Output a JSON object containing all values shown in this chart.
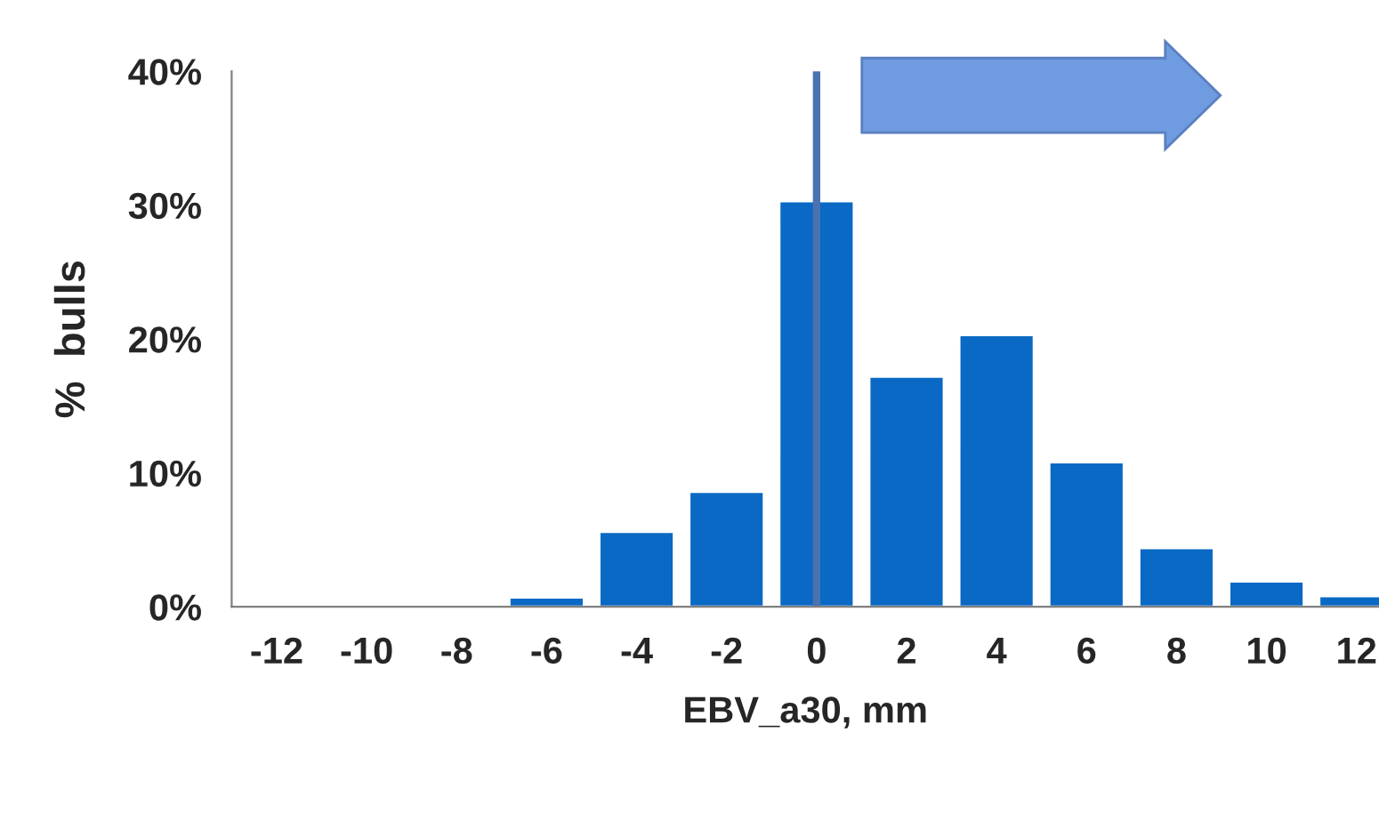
{
  "chart_data": {
    "type": "bar",
    "xlabel": "EBV_a30, mm",
    "ylabel": "%  bulls",
    "categories": [
      "-12",
      "-10",
      "-8",
      "-6",
      "-4",
      "-2",
      "0",
      "2",
      "4",
      "6",
      "8",
      "10",
      "12"
    ],
    "values": [
      null,
      null,
      null,
      0.7,
      5.6,
      8.6,
      30.3,
      17.2,
      20.3,
      10.8,
      4.4,
      1.9,
      0.8
    ],
    "color": "#0a69c4",
    "ylim": [
      0,
      40
    ],
    "yticks": [
      {
        "value": 0,
        "label": "0%"
      },
      {
        "value": 10,
        "label": "10%"
      },
      {
        "value": 20,
        "label": "20%"
      },
      {
        "value": 30,
        "label": "30%"
      },
      {
        "value": 40,
        "label": "40%"
      }
    ],
    "ref_lines": [
      {
        "axis": "x",
        "value": "0",
        "color": "#4a72b0"
      }
    ],
    "grid": false,
    "legend": false
  }
}
